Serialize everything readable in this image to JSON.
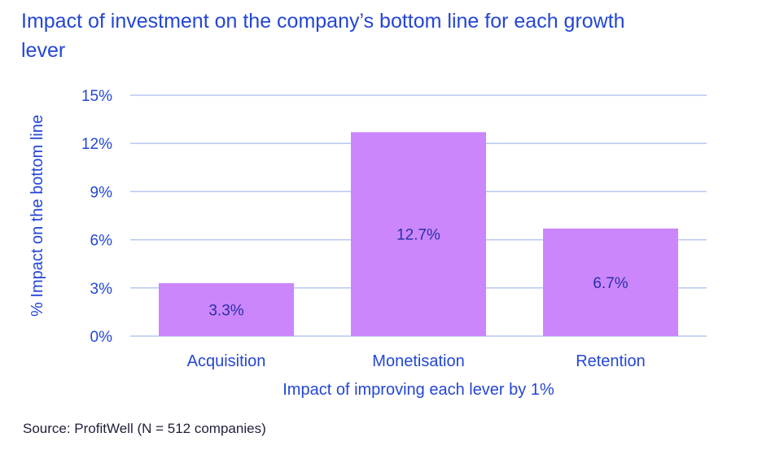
{
  "title": "Impact of investment on the company’s bottom line for each growth lever",
  "source": "Source: ProfitWell (N = 512 companies)",
  "colors": {
    "accent": "#2446d6",
    "bar": "#cb86fb",
    "grid": "#b9c7f0",
    "bar_label": "#2a2fa8"
  },
  "chart_data": {
    "type": "bar",
    "title": "Impact of investment on the company’s bottom line for each growth lever",
    "xlabel": "Impact of improving each lever by 1%",
    "ylabel": "% Impact on the bottom line",
    "categories": [
      "Acquisition",
      "Monetisation",
      "Retention"
    ],
    "values": [
      3.3,
      12.7,
      6.7
    ],
    "data_labels": [
      "3.3%",
      "12.7%",
      "6.7%"
    ],
    "ylim": [
      0,
      15
    ],
    "yticks": [
      0,
      3,
      6,
      9,
      12,
      15
    ],
    "ytick_labels": [
      "0%",
      "3%",
      "6%",
      "9%",
      "12%",
      "15%"
    ],
    "grid": true,
    "legend": "none"
  }
}
